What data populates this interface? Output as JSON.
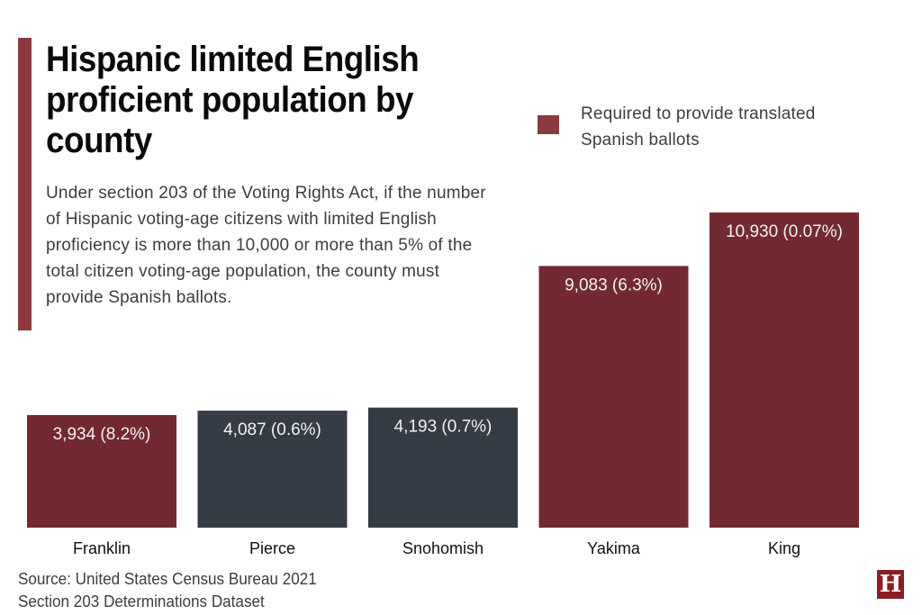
{
  "header": {
    "title": "Hispanic limited English proficient population by county",
    "subtitle": "Under section 203 of the Voting Rights Act, if the number of Hispanic voting-age citizens with limited English proficiency is more than 10,000 or more than 5% of the total citizen voting-age population, the county must provide Spanish ballots."
  },
  "legend": {
    "label": "Required to provide translated Spanish ballots",
    "color": "#722a30"
  },
  "footer": {
    "source_line1": "Source: United States Census Bureau 2021",
    "source_line2": "Section 203 Determinations Dataset",
    "logo_letter": "H"
  },
  "colors": {
    "required": "#722a30",
    "not_required": "#353c46",
    "accent": "#8b3a3e",
    "logo": "#8b1e24"
  },
  "chart_data": {
    "type": "bar",
    "title": "Hispanic limited English proficient population by county",
    "xlabel": "",
    "ylabel": "",
    "categories": [
      "Franklin",
      "Pierce",
      "Snohomish",
      "Yakima",
      "King"
    ],
    "values": [
      3934,
      4087,
      4193,
      9083,
      10930
    ],
    "percentages": [
      "8.2%",
      "0.6%",
      "0.7%",
      "6.3%",
      "0.07%"
    ],
    "data_labels": [
      "3,934 (8.2%)",
      "4,087 (0.6%)",
      "4,193 (0.7%)",
      "9,083 (6.3%)",
      "10,930 (0.07%)"
    ],
    "required_translated_ballots": [
      true,
      false,
      false,
      true,
      true
    ],
    "legend": [
      {
        "name": "Required to provide translated Spanish ballots",
        "color": "#722a30"
      }
    ],
    "legend_position": "top-right",
    "grid": false,
    "axes_visible": false
  }
}
